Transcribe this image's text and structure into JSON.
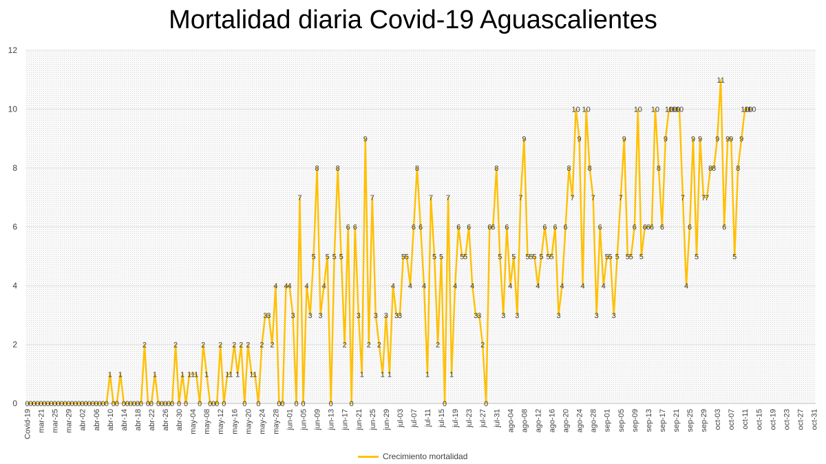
{
  "chart_data": {
    "type": "line",
    "title": "Mortalidad diaria Covid-19 Aguascalientes",
    "xlabel": "",
    "ylabel": "",
    "ylim": [
      0,
      12
    ],
    "yticks": [
      0,
      2,
      4,
      6,
      8,
      10,
      12
    ],
    "grid": true,
    "legend_position": "bottom",
    "first_category": "Covid-19",
    "start_month": 3,
    "start_day": 18,
    "n_categories": 229,
    "month_names": [
      "ene",
      "feb",
      "mar",
      "abr",
      "may",
      "jun",
      "jul",
      "ago",
      "sep",
      "oct",
      "nov",
      "dic"
    ],
    "series": [
      {
        "name": "Crecimiento mortalidad",
        "color": "#ffc000",
        "values": [
          0,
          0,
          0,
          0,
          0,
          0,
          0,
          0,
          0,
          0,
          0,
          0,
          0,
          0,
          0,
          0,
          0,
          0,
          0,
          0,
          0,
          0,
          0,
          0,
          1,
          0,
          0,
          1,
          0,
          0,
          0,
          0,
          0,
          0,
          2,
          0,
          0,
          1,
          0,
          0,
          0,
          0,
          0,
          2,
          0,
          1,
          0,
          1,
          1,
          1,
          0,
          2,
          1,
          0,
          0,
          0,
          2,
          0,
          1,
          1,
          2,
          1,
          2,
          0,
          2,
          1,
          1,
          0,
          2,
          3,
          3,
          2,
          4,
          0,
          0,
          4,
          4,
          3,
          0,
          7,
          0,
          4,
          3,
          5,
          8,
          3,
          4,
          5,
          0,
          5,
          8,
          5,
          2,
          6,
          0,
          6,
          3,
          1,
          9,
          2,
          7,
          3,
          2,
          1,
          3,
          1,
          4,
          3,
          3,
          5,
          5,
          4,
          6,
          8,
          6,
          4,
          1,
          7,
          5,
          2,
          5,
          0,
          7,
          1,
          4,
          6,
          5,
          5,
          6,
          4,
          3,
          3,
          2,
          0,
          6,
          6,
          8,
          5,
          3,
          6,
          4,
          5,
          3,
          7,
          9,
          5,
          5,
          5,
          4,
          5,
          6,
          5,
          5,
          6,
          3,
          4,
          6,
          8,
          7,
          10,
          9,
          4,
          10,
          8,
          7,
          3,
          6,
          4,
          5,
          5,
          3,
          5,
          7,
          9,
          5,
          5,
          6,
          10,
          5,
          6,
          6,
          6,
          10,
          8,
          6,
          9,
          10,
          10,
          10,
          10,
          7,
          4,
          6,
          9,
          5,
          9,
          7,
          7,
          8,
          8,
          9,
          11,
          6,
          9,
          9,
          5,
          8,
          9,
          10,
          10,
          10
        ]
      }
    ]
  }
}
